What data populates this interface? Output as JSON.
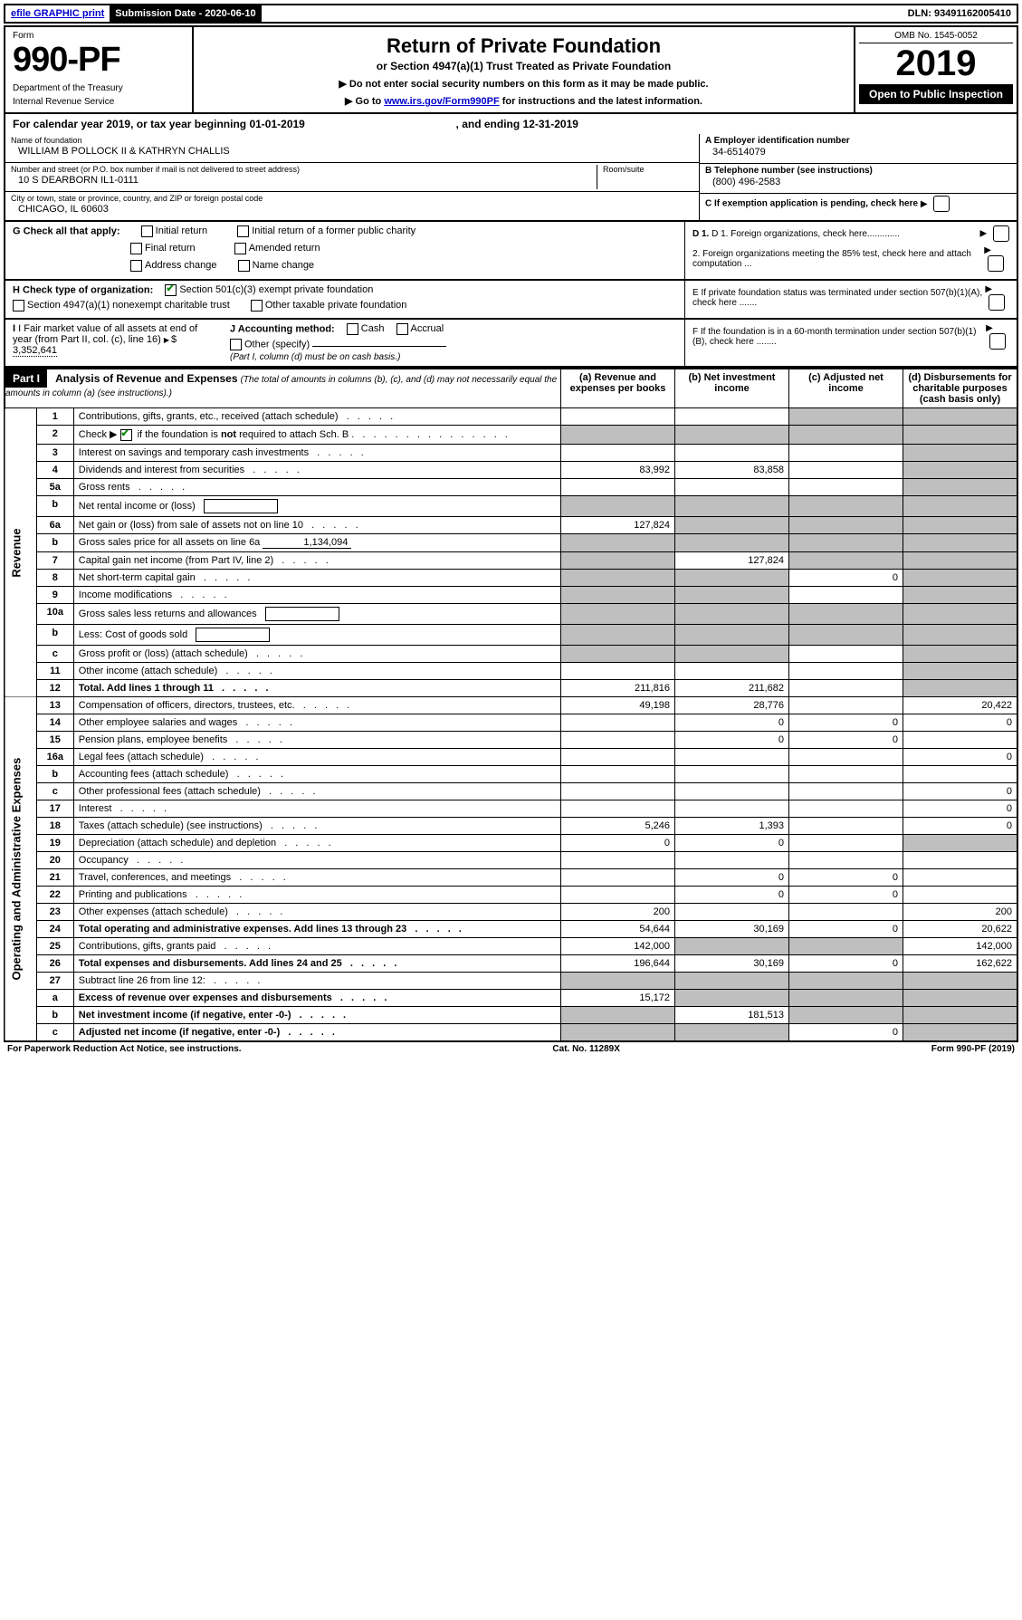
{
  "top": {
    "efile": "efile GRAPHIC print",
    "submission_label": "Submission Date - 2020-06-10",
    "dln_label": "DLN: 93491162005410"
  },
  "header": {
    "form_label": "Form",
    "form_number": "990-PF",
    "dept1": "Department of the Treasury",
    "dept2": "Internal Revenue Service",
    "title": "Return of Private Foundation",
    "subtitle": "or Section 4947(a)(1) Trust Treated as Private Foundation",
    "note1": "▶ Do not enter social security numbers on this form as it may be made public.",
    "note2_pre": "▶ Go to ",
    "note2_link": "www.irs.gov/Form990PF",
    "note2_post": " for instructions and the latest information.",
    "omb": "OMB No. 1545-0052",
    "year": "2019",
    "open": "Open to Public Inspection"
  },
  "cal": {
    "text_pre": "For calendar year 2019, or tax year beginning ",
    "begin": "01-01-2019",
    "mid": " , and ending ",
    "end": "12-31-2019"
  },
  "info": {
    "name_label": "Name of foundation",
    "name": "WILLIAM B POLLOCK II & KATHRYN CHALLIS",
    "addr_label": "Number and street (or P.O. box number if mail is not delivered to street address)",
    "addr": "10 S DEARBORN IL1-0111",
    "room_label": "Room/suite",
    "city_label": "City or town, state or province, country, and ZIP or foreign postal code",
    "city": "CHICAGO, IL  60603",
    "a_label": "A Employer identification number",
    "a_val": "34-6514079",
    "b_label": "B Telephone number (see instructions)",
    "b_val": "(800) 496-2583",
    "c_label": "C  If exemption application is pending, check here",
    "d1": "D 1. Foreign organizations, check here.............",
    "d2": "2. Foreign organizations meeting the 85% test, check here and attach computation ...",
    "e": "E  If private foundation status was terminated under section 507(b)(1)(A), check here .......",
    "f": "F  If the foundation is in a 60-month termination under section 507(b)(1)(B), check here ........"
  },
  "g": {
    "label": "G Check all that apply:",
    "opts": [
      "Initial return",
      "Initial return of a former public charity",
      "Final return",
      "Amended return",
      "Address change",
      "Name change"
    ]
  },
  "h": {
    "label": "H Check type of organization:",
    "opt1": "Section 501(c)(3) exempt private foundation",
    "opt2": "Section 4947(a)(1) nonexempt charitable trust",
    "opt3": "Other taxable private foundation"
  },
  "i": {
    "label": "I Fair market value of all assets at end of year (from Part II, col. (c), line 16)",
    "val": "3,352,641"
  },
  "j": {
    "label": "J Accounting method:",
    "cash": "Cash",
    "accrual": "Accrual",
    "other": "Other (specify)",
    "note": "(Part I, column (d) must be on cash basis.)"
  },
  "part1": {
    "label": "Part I",
    "title": "Analysis of Revenue and Expenses",
    "title_note": "(The total of amounts in columns (b), (c), and (d) may not necessarily equal the amounts in column (a) (see instructions).)",
    "col_a": "(a)   Revenue and expenses per books",
    "col_b": "(b)  Net investment income",
    "col_c": "(c)  Adjusted net income",
    "col_d": "(d)  Disbursements for charitable purposes (cash basis only)"
  },
  "revenue_label": "Revenue",
  "expenses_label": "Operating and Administrative Expenses",
  "rows": [
    {
      "n": "1",
      "desc": "Contributions, gifts, grants, etc., received (attach schedule)",
      "a": "",
      "b": "",
      "c": "g",
      "d": "g"
    },
    {
      "n": "2",
      "desc": "Check ▶ ☑ if the foundation is not required to attach Sch. B",
      "a": "g",
      "b": "g",
      "c": "g",
      "d": "g",
      "special": "check"
    },
    {
      "n": "3",
      "desc": "Interest on savings and temporary cash investments",
      "a": "",
      "b": "",
      "c": "",
      "d": "g"
    },
    {
      "n": "4",
      "desc": "Dividends and interest from securities",
      "a": "83,992",
      "b": "83,858",
      "c": "",
      "d": "g"
    },
    {
      "n": "5a",
      "desc": "Gross rents",
      "a": "",
      "b": "",
      "c": "",
      "d": "g"
    },
    {
      "n": "b",
      "desc": "Net rental income or (loss)",
      "a": "g",
      "b": "g",
      "c": "g",
      "d": "g",
      "inline": true
    },
    {
      "n": "6a",
      "desc": "Net gain or (loss) from sale of assets not on line 10",
      "a": "127,824",
      "b": "g",
      "c": "g",
      "d": "g"
    },
    {
      "n": "b",
      "desc": "Gross sales price for all assets on line 6a",
      "a": "g",
      "b": "g",
      "c": "g",
      "d": "g",
      "val": "1,134,094"
    },
    {
      "n": "7",
      "desc": "Capital gain net income (from Part IV, line 2)",
      "a": "g",
      "b": "127,824",
      "c": "g",
      "d": "g"
    },
    {
      "n": "8",
      "desc": "Net short-term capital gain",
      "a": "g",
      "b": "g",
      "c": "0",
      "d": "g"
    },
    {
      "n": "9",
      "desc": "Income modifications",
      "a": "g",
      "b": "g",
      "c": "",
      "d": "g"
    },
    {
      "n": "10a",
      "desc": "Gross sales less returns and allowances",
      "a": "g",
      "b": "g",
      "c": "g",
      "d": "g",
      "inline": true
    },
    {
      "n": "b",
      "desc": "Less: Cost of goods sold",
      "a": "g",
      "b": "g",
      "c": "g",
      "d": "g",
      "inline": true
    },
    {
      "n": "c",
      "desc": "Gross profit or (loss) (attach schedule)",
      "a": "g",
      "b": "g",
      "c": "",
      "d": "g"
    },
    {
      "n": "11",
      "desc": "Other income (attach schedule)",
      "a": "",
      "b": "",
      "c": "",
      "d": "g"
    },
    {
      "n": "12",
      "desc": "Total. Add lines 1 through 11",
      "a": "211,816",
      "b": "211,682",
      "c": "",
      "d": "g",
      "bold": true
    }
  ],
  "exp_rows": [
    {
      "n": "13",
      "desc": "Compensation of officers, directors, trustees, etc.",
      "a": "49,198",
      "b": "28,776",
      "c": "",
      "d": "20,422"
    },
    {
      "n": "14",
      "desc": "Other employee salaries and wages",
      "a": "",
      "b": "0",
      "c": "0",
      "d": "0"
    },
    {
      "n": "15",
      "desc": "Pension plans, employee benefits",
      "a": "",
      "b": "0",
      "c": "0",
      "d": ""
    },
    {
      "n": "16a",
      "desc": "Legal fees (attach schedule)",
      "a": "",
      "b": "",
      "c": "",
      "d": "0"
    },
    {
      "n": "b",
      "desc": "Accounting fees (attach schedule)",
      "a": "",
      "b": "",
      "c": "",
      "d": ""
    },
    {
      "n": "c",
      "desc": "Other professional fees (attach schedule)",
      "a": "",
      "b": "",
      "c": "",
      "d": "0"
    },
    {
      "n": "17",
      "desc": "Interest",
      "a": "",
      "b": "",
      "c": "",
      "d": "0"
    },
    {
      "n": "18",
      "desc": "Taxes (attach schedule) (see instructions)",
      "a": "5,246",
      "b": "1,393",
      "c": "",
      "d": "0"
    },
    {
      "n": "19",
      "desc": "Depreciation (attach schedule) and depletion",
      "a": "0",
      "b": "0",
      "c": "",
      "d": "g"
    },
    {
      "n": "20",
      "desc": "Occupancy",
      "a": "",
      "b": "",
      "c": "",
      "d": ""
    },
    {
      "n": "21",
      "desc": "Travel, conferences, and meetings",
      "a": "",
      "b": "0",
      "c": "0",
      "d": ""
    },
    {
      "n": "22",
      "desc": "Printing and publications",
      "a": "",
      "b": "0",
      "c": "0",
      "d": ""
    },
    {
      "n": "23",
      "desc": "Other expenses (attach schedule)",
      "a": "200",
      "b": "",
      "c": "",
      "d": "200"
    },
    {
      "n": "24",
      "desc": "Total operating and administrative expenses. Add lines 13 through 23",
      "a": "54,644",
      "b": "30,169",
      "c": "0",
      "d": "20,622",
      "bold": true
    },
    {
      "n": "25",
      "desc": "Contributions, gifts, grants paid",
      "a": "142,000",
      "b": "g",
      "c": "g",
      "d": "142,000"
    },
    {
      "n": "26",
      "desc": "Total expenses and disbursements. Add lines 24 and 25",
      "a": "196,644",
      "b": "30,169",
      "c": "0",
      "d": "162,622",
      "bold": true
    },
    {
      "n": "27",
      "desc": "Subtract line 26 from line 12:",
      "a": "g",
      "b": "g",
      "c": "g",
      "d": "g"
    },
    {
      "n": "a",
      "desc": "Excess of revenue over expenses and disbursements",
      "a": "15,172",
      "b": "g",
      "c": "g",
      "d": "g",
      "bold": true
    },
    {
      "n": "b",
      "desc": "Net investment income (if negative, enter -0-)",
      "a": "g",
      "b": "181,513",
      "c": "g",
      "d": "g",
      "bold": true
    },
    {
      "n": "c",
      "desc": "Adjusted net income (if negative, enter -0-)",
      "a": "g",
      "b": "g",
      "c": "0",
      "d": "g",
      "bold": true
    }
  ],
  "foot": {
    "left": "For Paperwork Reduction Act Notice, see instructions.",
    "mid": "Cat. No. 11289X",
    "right": "Form 990-PF (2019)"
  }
}
